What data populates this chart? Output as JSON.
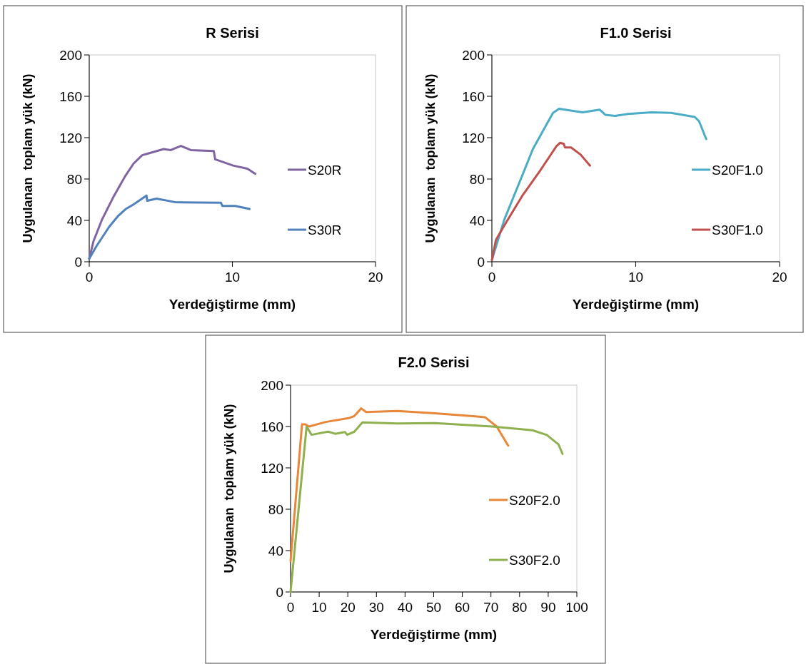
{
  "chart_data": [
    {
      "type": "line",
      "title": "R Serisi",
      "xlabel": "Yerdeğiştirme (mm)",
      "ylabel": "Uygulanan  toplam yük (kN)",
      "xlim": [
        0,
        20
      ],
      "xticks": [
        0,
        10,
        20
      ],
      "ylim": [
        0,
        200
      ],
      "yticks": [
        0,
        40,
        80,
        120,
        160,
        200
      ],
      "grid": false,
      "legend": "right",
      "series": [
        {
          "name": "S20R",
          "color": "#8064a2",
          "x": [
            0,
            0.3,
            0.9,
            1.7,
            2.5,
            3.1,
            3.7,
            4.2,
            5.2,
            5.7,
            6.4,
            7.1,
            8.7,
            8.8,
            10.05,
            11.05,
            11.6
          ],
          "values": [
            3,
            20,
            41,
            63,
            82.5,
            95,
            103,
            105,
            109,
            108,
            112,
            108,
            107,
            99,
            93,
            90,
            85
          ]
        },
        {
          "name": "S30R",
          "color": "#4f81bd",
          "x": [
            0,
            0.5,
            1.4,
            2.0,
            2.55,
            3.05,
            4.0,
            4.05,
            4.7,
            6.05,
            9.2,
            9.3,
            10.2,
            11.2
          ],
          "values": [
            3,
            15,
            34,
            44,
            51,
            55,
            64,
            59,
            61,
            57.5,
            57,
            54,
            54,
            51
          ]
        }
      ]
    },
    {
      "type": "line",
      "title": "F1.0 Serisi",
      "xlabel": "Yerdeğiştirme (mm)",
      "ylabel": "Uygulanan  toplam yük (kN)",
      "xlim": [
        0,
        20
      ],
      "xticks": [
        0,
        10,
        20
      ],
      "ylim": [
        0,
        200
      ],
      "yticks": [
        0,
        40,
        80,
        120,
        160,
        200
      ],
      "grid": false,
      "legend": "right",
      "series": [
        {
          "name": "S20F1.0",
          "color": "#4bacc6",
          "x": [
            0,
            0.86,
            2.0,
            2.85,
            4.25,
            4.67,
            6.3,
            7.5,
            7.9,
            8.56,
            9.47,
            11.1,
            12.45,
            14.1,
            14.4,
            14.9
          ],
          "values": [
            1.6,
            40.6,
            79.6,
            109,
            144,
            148,
            144.5,
            147,
            142,
            141,
            143,
            144.5,
            144,
            140,
            136,
            118.6
          ]
        },
        {
          "name": "S30F1.0",
          "color": "#c0504d",
          "x": [
            0,
            0.28,
            0.86,
            2.1,
            3.35,
            4.5,
            4.75,
            5.0,
            5.08,
            5.5,
            6.16,
            6.82
          ],
          "values": [
            1.6,
            21,
            35,
            63.5,
            88,
            112,
            115,
            114,
            110.6,
            110.5,
            103.7,
            93
          ]
        }
      ]
    },
    {
      "type": "line",
      "title": "F2.0 Serisi",
      "xlabel": "Yerdeğiştirme (mm)",
      "ylabel": "Uygulanan  toplam yük (kN)",
      "xlim": [
        0,
        100
      ],
      "xticks": [
        0,
        10,
        20,
        30,
        40,
        50,
        60,
        70,
        80,
        90,
        100
      ],
      "ylim": [
        0,
        200
      ],
      "yticks": [
        0,
        40,
        80,
        120,
        160,
        200
      ],
      "grid": false,
      "legend": "right",
      "series": [
        {
          "name": "S20F2.0",
          "color": "#e8873a",
          "x": [
            0,
            4.0,
            5.2,
            6.5,
            12.3,
            20.6,
            22.2,
            24.7,
            26.4,
            37.2,
            49.6,
            63.7,
            67.9,
            72,
            76
          ],
          "values": [
            30,
            162,
            162,
            160,
            164.4,
            168.3,
            170,
            177.5,
            174,
            175,
            173,
            170,
            169,
            160,
            141.5
          ]
        },
        {
          "name": "S30F2.0",
          "color": "#8fb04e",
          "x": [
            0,
            5.6,
            7.3,
            13.1,
            15.6,
            19,
            19.8,
            22.3,
            25.1,
            37.2,
            50.5,
            70.4,
            84.5,
            89.5,
            93.6,
            95
          ],
          "values": [
            0,
            160,
            152,
            155,
            153,
            154.6,
            152,
            155,
            164,
            163,
            163.3,
            160,
            156.4,
            151.8,
            142.7,
            133.5
          ]
        }
      ]
    }
  ]
}
